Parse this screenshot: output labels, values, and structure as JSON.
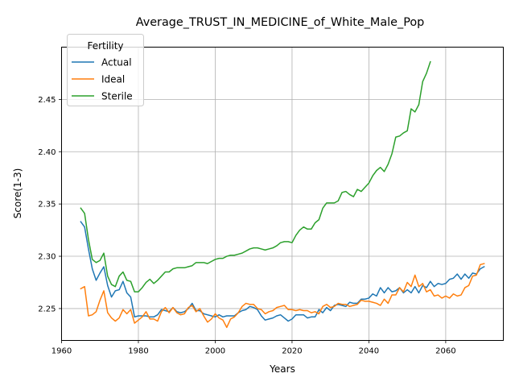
{
  "chart_data": {
    "type": "line",
    "title": "Average_TRUST_IN_MEDICINE_of_White_Male_Pop",
    "xlabel": "Years",
    "ylabel": "Score(1-3)",
    "xlim": [
      1960,
      2075
    ],
    "ylim": [
      2.2195,
      2.5
    ],
    "xticks": [
      1960,
      1980,
      2000,
      2020,
      2040,
      2060
    ],
    "yticks": [
      2.25,
      2.3,
      2.35,
      2.4,
      2.45
    ],
    "xtick_labels": [
      "1960",
      "1980",
      "2000",
      "2020",
      "2040",
      "2060"
    ],
    "ytick_labels": [
      "2.25",
      "2.30",
      "2.35",
      "2.40",
      "2.45"
    ],
    "grid": true,
    "legend": {
      "title": "Fertility",
      "placement": "top-left"
    },
    "series": [
      {
        "name": "Actual",
        "color": "#1f77b4",
        "x": [
          1965,
          1966,
          1967,
          1968,
          1969,
          1970,
          1971,
          1972,
          1973,
          1974,
          1975,
          1976,
          1977,
          1978,
          1979,
          1980,
          1981,
          1982,
          1983,
          1984,
          1985,
          1986,
          1987,
          1988,
          1989,
          1990,
          1991,
          1992,
          1993,
          1994,
          1995,
          1996,
          1997,
          1998,
          1999,
          2000,
          2001,
          2002,
          2003,
          2004,
          2005,
          2006,
          2007,
          2008,
          2009,
          2010,
          2011,
          2012,
          2013,
          2014,
          2015,
          2016,
          2017,
          2018,
          2019,
          2020,
          2021,
          2022,
          2023,
          2024,
          2025,
          2026,
          2027,
          2028,
          2029,
          2030,
          2031,
          2032,
          2033,
          2034,
          2035,
          2036,
          2037,
          2038,
          2039,
          2040,
          2041,
          2042,
          2043,
          2044,
          2045,
          2046,
          2047,
          2048,
          2049,
          2050,
          2051,
          2052,
          2053,
          2054,
          2055,
          2056,
          2057,
          2058,
          2059,
          2060,
          2061,
          2062,
          2063,
          2064,
          2065,
          2066,
          2067,
          2068,
          2069,
          2070
        ],
        "values": [
          2.333,
          2.328,
          2.307,
          2.288,
          2.277,
          2.284,
          2.29,
          2.272,
          2.261,
          2.267,
          2.268,
          2.276,
          2.265,
          2.261,
          2.242,
          2.243,
          2.243,
          2.243,
          2.242,
          2.242,
          2.244,
          2.249,
          2.248,
          2.247,
          2.251,
          2.247,
          2.246,
          2.247,
          2.25,
          2.255,
          2.248,
          2.248,
          2.245,
          2.244,
          2.243,
          2.242,
          2.244,
          2.242,
          2.243,
          2.243,
          2.243,
          2.246,
          2.248,
          2.249,
          2.252,
          2.251,
          2.249,
          2.243,
          2.239,
          2.24,
          2.241,
          2.243,
          2.244,
          2.241,
          2.238,
          2.24,
          2.244,
          2.244,
          2.244,
          2.241,
          2.242,
          2.242,
          2.249,
          2.246,
          2.251,
          2.248,
          2.253,
          2.254,
          2.253,
          2.252,
          2.256,
          2.255,
          2.255,
          2.259,
          2.259,
          2.26,
          2.264,
          2.262,
          2.27,
          2.265,
          2.27,
          2.266,
          2.267,
          2.27,
          2.265,
          2.268,
          2.265,
          2.271,
          2.265,
          2.272,
          2.27,
          2.276,
          2.271,
          2.274,
          2.273,
          2.274,
          2.278,
          2.279,
          2.283,
          2.278,
          2.283,
          2.279,
          2.284,
          2.283,
          2.288,
          2.29
        ]
      },
      {
        "name": "Ideal",
        "color": "#ff7f0e",
        "x": [
          1965,
          1966,
          1967,
          1968,
          1969,
          1970,
          1971,
          1972,
          1973,
          1974,
          1975,
          1976,
          1977,
          1978,
          1979,
          1980,
          1981,
          1982,
          1983,
          1984,
          1985,
          1986,
          1987,
          1988,
          1989,
          1990,
          1991,
          1992,
          1993,
          1994,
          1995,
          1996,
          1997,
          1998,
          1999,
          2000,
          2001,
          2002,
          2003,
          2004,
          2005,
          2006,
          2007,
          2008,
          2009,
          2010,
          2011,
          2012,
          2013,
          2014,
          2015,
          2016,
          2017,
          2018,
          2019,
          2020,
          2021,
          2022,
          2023,
          2024,
          2025,
          2026,
          2027,
          2028,
          2029,
          2030,
          2031,
          2032,
          2033,
          2034,
          2035,
          2036,
          2037,
          2038,
          2039,
          2040,
          2041,
          2042,
          2043,
          2044,
          2045,
          2046,
          2047,
          2048,
          2049,
          2050,
          2051,
          2052,
          2053,
          2054,
          2055,
          2056,
          2057,
          2058,
          2059,
          2060,
          2061,
          2062,
          2063,
          2064,
          2065,
          2066,
          2067,
          2068,
          2069,
          2070
        ],
        "values": [
          2.269,
          2.271,
          2.243,
          2.244,
          2.247,
          2.258,
          2.267,
          2.246,
          2.241,
          2.238,
          2.241,
          2.249,
          2.245,
          2.249,
          2.236,
          2.239,
          2.242,
          2.247,
          2.24,
          2.24,
          2.238,
          2.247,
          2.251,
          2.246,
          2.251,
          2.246,
          2.244,
          2.245,
          2.251,
          2.253,
          2.247,
          2.25,
          2.243,
          2.237,
          2.24,
          2.245,
          2.241,
          2.239,
          2.232,
          2.24,
          2.242,
          2.246,
          2.252,
          2.255,
          2.254,
          2.254,
          2.25,
          2.249,
          2.245,
          2.247,
          2.248,
          2.251,
          2.252,
          2.253,
          2.249,
          2.249,
          2.248,
          2.249,
          2.248,
          2.248,
          2.246,
          2.247,
          2.245,
          2.252,
          2.254,
          2.251,
          2.252,
          2.255,
          2.254,
          2.254,
          2.252,
          2.253,
          2.254,
          2.258,
          2.257,
          2.257,
          2.256,
          2.255,
          2.253,
          2.259,
          2.255,
          2.263,
          2.263,
          2.27,
          2.266,
          2.275,
          2.271,
          2.282,
          2.271,
          2.274,
          2.266,
          2.268,
          2.262,
          2.263,
          2.26,
          2.262,
          2.26,
          2.264,
          2.262,
          2.263,
          2.27,
          2.272,
          2.281,
          2.282,
          2.292,
          2.293
        ]
      },
      {
        "name": "Sterile",
        "color": "#2ca02c",
        "x": [
          1965,
          1966,
          1967,
          1968,
          1969,
          1970,
          1971,
          1972,
          1973,
          1974,
          1975,
          1976,
          1977,
          1978,
          1979,
          1980,
          1981,
          1982,
          1983,
          1984,
          1985,
          1986,
          1987,
          1988,
          1989,
          1990,
          1991,
          1992,
          1993,
          1994,
          1995,
          1996,
          1997,
          1998,
          1999,
          2000,
          2001,
          2002,
          2003,
          2004,
          2005,
          2006,
          2007,
          2008,
          2009,
          2010,
          2011,
          2012,
          2013,
          2014,
          2015,
          2016,
          2017,
          2018,
          2019,
          2020,
          2021,
          2022,
          2023,
          2024,
          2025,
          2026,
          2027,
          2028,
          2029,
          2030,
          2031,
          2032,
          2033,
          2034,
          2035,
          2036,
          2037,
          2038,
          2039,
          2040,
          2041,
          2042,
          2043,
          2044,
          2045,
          2046,
          2047,
          2048,
          2049,
          2050,
          2051,
          2052,
          2053,
          2054,
          2055,
          2056
        ],
        "values": [
          2.346,
          2.341,
          2.316,
          2.297,
          2.294,
          2.296,
          2.303,
          2.281,
          2.273,
          2.271,
          2.281,
          2.285,
          2.277,
          2.276,
          2.266,
          2.266,
          2.27,
          2.275,
          2.278,
          2.274,
          2.277,
          2.281,
          2.285,
          2.285,
          2.288,
          2.289,
          2.289,
          2.289,
          2.29,
          2.291,
          2.294,
          2.294,
          2.294,
          2.293,
          2.295,
          2.297,
          2.298,
          2.298,
          2.3,
          2.301,
          2.301,
          2.302,
          2.303,
          2.305,
          2.307,
          2.308,
          2.308,
          2.307,
          2.306,
          2.307,
          2.308,
          2.31,
          2.313,
          2.314,
          2.314,
          2.313,
          2.32,
          2.325,
          2.328,
          2.326,
          2.326,
          2.332,
          2.335,
          2.346,
          2.351,
          2.351,
          2.351,
          2.353,
          2.361,
          2.362,
          2.359,
          2.357,
          2.364,
          2.362,
          2.366,
          2.37,
          2.377,
          2.382,
          2.385,
          2.381,
          2.388,
          2.398,
          2.414,
          2.415,
          2.418,
          2.42,
          2.441,
          2.438,
          2.445,
          2.467,
          2.475,
          2.486
        ]
      }
    ]
  }
}
